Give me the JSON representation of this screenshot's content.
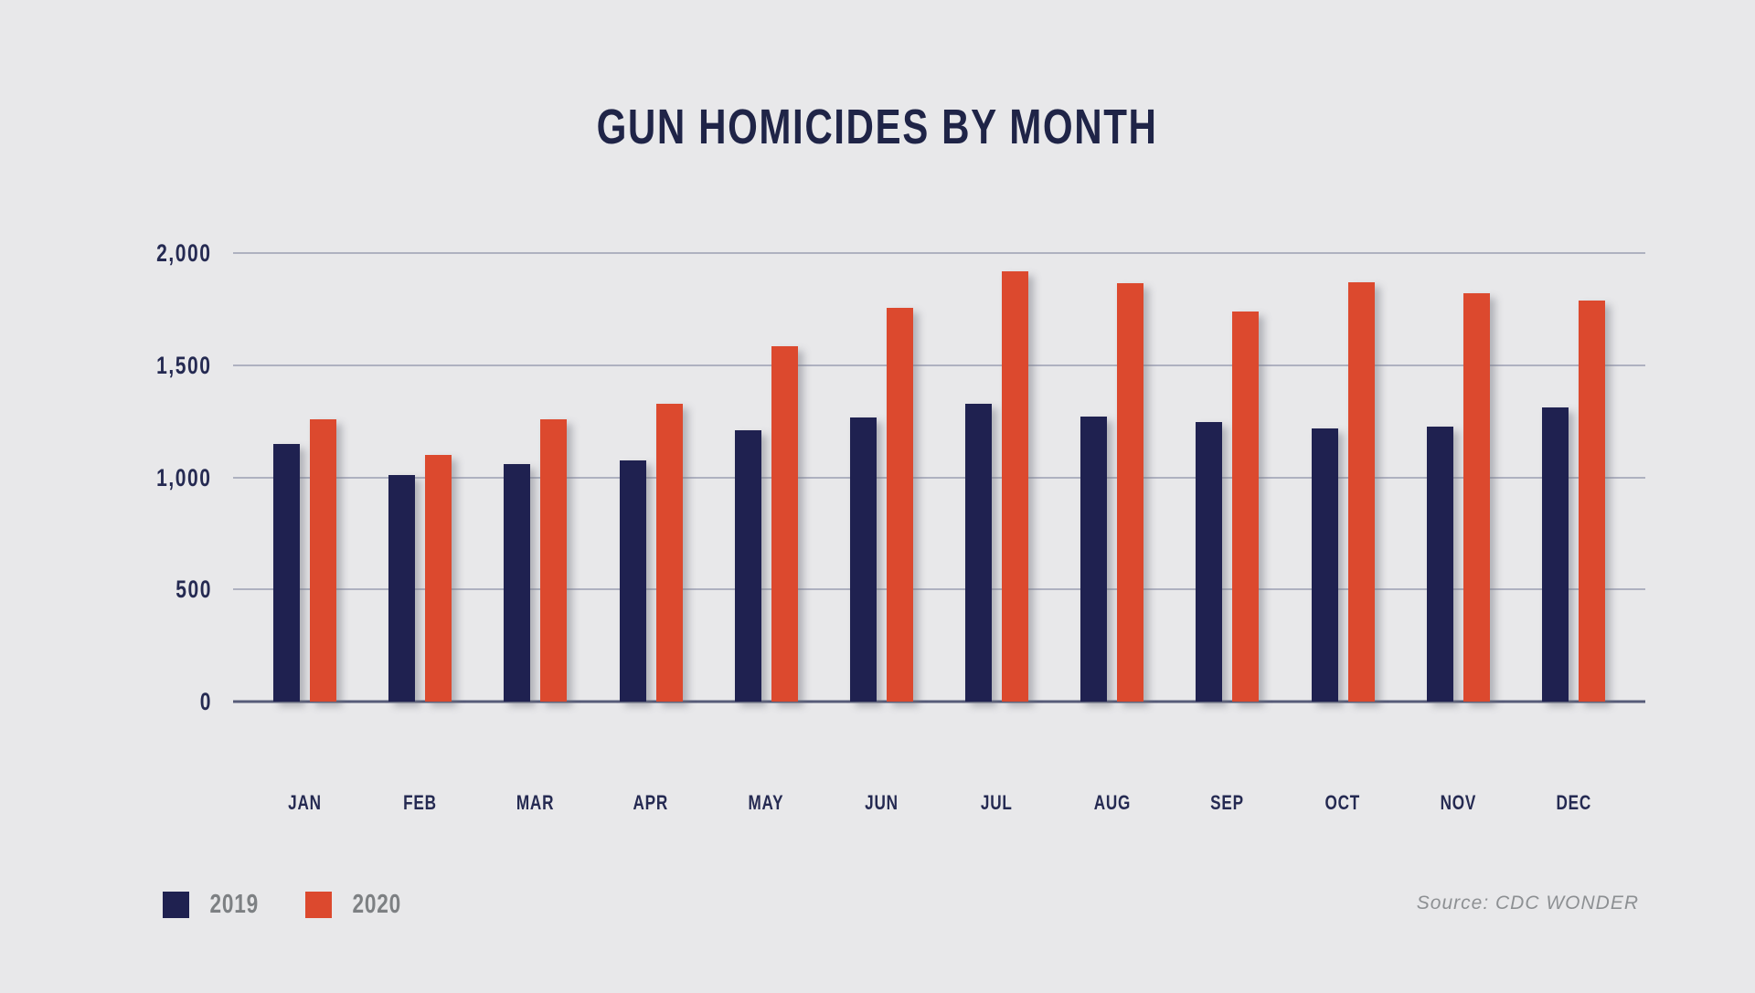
{
  "chart": {
    "title": "GUN HOMICIDES BY MONTH",
    "colors": {
      "background": "#e8e8ea",
      "series_2019": "#1f2150",
      "series_2020": "#dc492e",
      "gridline": "#aeb1c0",
      "axis_line": "#565b78",
      "title_text": "#1f2447",
      "tick_text": "#252a52",
      "legend_text": "#7d8083",
      "source_text": "#8d9093"
    }
  },
  "chart_data": {
    "type": "bar",
    "title": "GUN HOMICIDES BY MONTH",
    "categories": [
      "JAN",
      "FEB",
      "MAR",
      "APR",
      "MAY",
      "JUN",
      "JUL",
      "AUG",
      "SEP",
      "OCT",
      "NOV",
      "DEC"
    ],
    "series": [
      {
        "name": "2019",
        "color": "#1f2150",
        "values": [
          1150,
          1010,
          1060,
          1075,
          1210,
          1265,
          1330,
          1270,
          1245,
          1220,
          1225,
          1310
        ]
      },
      {
        "name": "2020",
        "color": "#dc492e",
        "values": [
          1260,
          1100,
          1260,
          1330,
          1585,
          1755,
          1920,
          1865,
          1740,
          1870,
          1820,
          1790
        ]
      }
    ],
    "xlabel": "",
    "ylabel": "",
    "ylim": [
      0,
      2000
    ],
    "y_ticks": [
      0,
      500,
      1000,
      1500,
      2000
    ],
    "y_tick_labels": [
      "0",
      "500",
      "1,000",
      "1,500",
      "2,000"
    ],
    "grid": "horizontal",
    "legend_position": "bottom-left",
    "source_note": "Source: CDC WONDER"
  }
}
